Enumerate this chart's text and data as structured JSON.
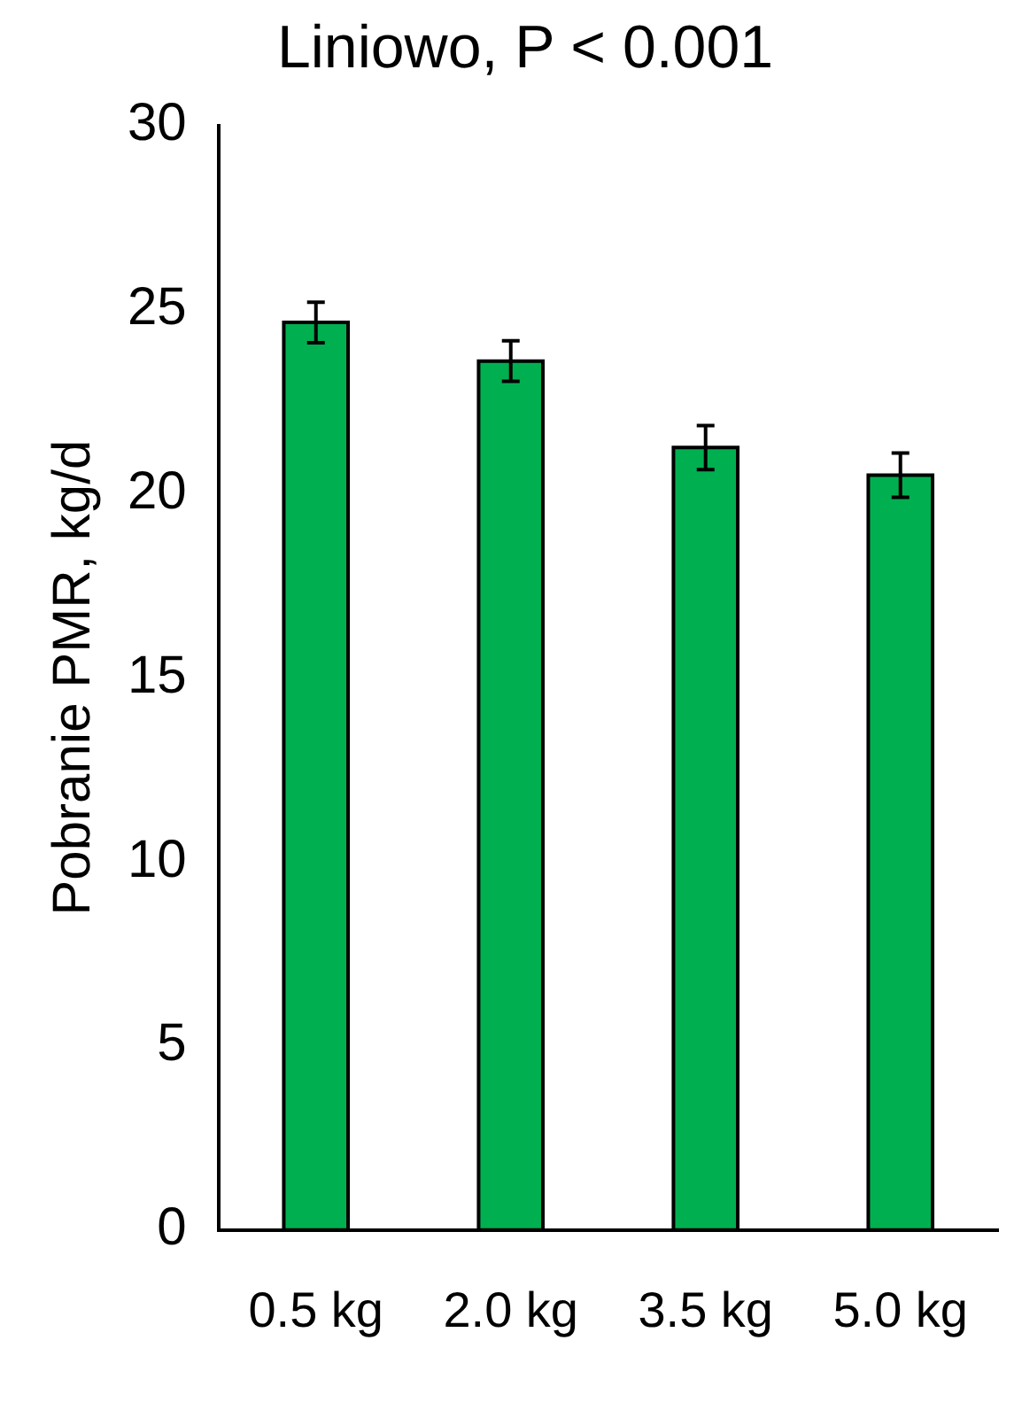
{
  "chart_data": {
    "type": "bar",
    "title": "Liniowo, P < 0.001",
    "ylabel": "Pobranie PMR, kg/d",
    "categories": [
      "0.5 kg",
      "2.0 kg",
      "3.5 kg",
      "5.0 kg"
    ],
    "values": [
      24.65,
      23.6,
      21.25,
      20.5
    ],
    "errors": [
      0.55,
      0.55,
      0.6,
      0.6
    ],
    "color": "#00b050",
    "ylim": [
      0,
      30
    ],
    "yticks": [
      0,
      5,
      10,
      15,
      20,
      25,
      30
    ],
    "grid": false,
    "legend": false
  }
}
